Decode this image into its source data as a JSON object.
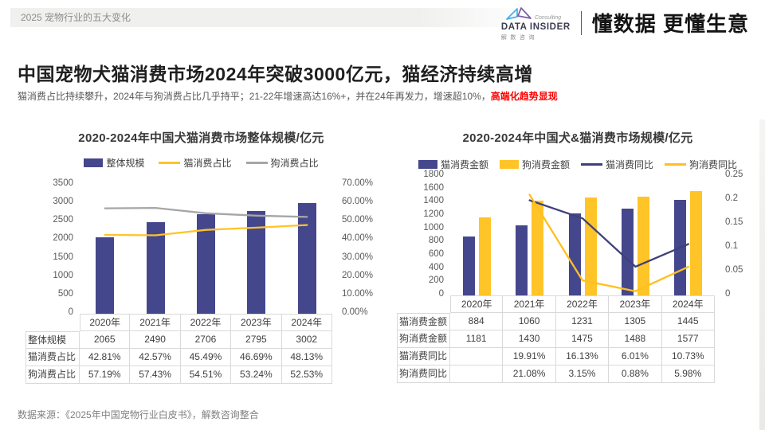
{
  "page": {
    "breadcrumb": "2025  宠物行业的五大变化",
    "title": "中国宠物犬猫消费市场2024年突破3000亿元，猫经济持续高增",
    "subtitle_main": "猫消费占比持续攀升，2024年与狗消费占比几乎持平；21-22年增速高达16%+，并在24年再发力，增速超10%，",
    "subtitle_highlight": "高端化趋势显现",
    "source": "数据来源：《2025年中国宠物行业白皮书》，解数咨询整合"
  },
  "brand": {
    "logo_script": "Consulting",
    "logo_name": "DATA INSIDER",
    "logo_sub": "解数咨询",
    "slogan": "懂数据 更懂生意"
  },
  "colors": {
    "bar_purple": "#44478C",
    "bar_yellow": "#FFC428",
    "line_gray": "#A6A6A6",
    "line_navy": "#3E4178",
    "line_yellow": "#FFBF1F",
    "highlight_red": "#FE0000",
    "table_border": "#D9D9D9"
  },
  "chart_data": [
    {
      "type": "bar",
      "subtype": "bar+line combo, dual axis",
      "title": "2020-2024年中国犬猫消费市场整体规模/亿元",
      "categories": [
        "2020年",
        "2021年",
        "2022年",
        "2023年",
        "2024年"
      ],
      "series": [
        {
          "name": "整体规模",
          "kind": "bar",
          "axis": "left",
          "color": "#44478C",
          "values": [
            2065,
            2490,
            2706,
            2795,
            3002
          ]
        },
        {
          "name": "猫消费占比",
          "kind": "line",
          "axis": "right",
          "color": "#FFC428",
          "values": [
            0.4281,
            0.4257,
            0.4549,
            0.4669,
            0.4813
          ]
        },
        {
          "name": "狗消费占比",
          "kind": "line",
          "axis": "right",
          "color": "#A6A6A6",
          "values": [
            0.5719,
            0.5743,
            0.5451,
            0.5324,
            0.5253
          ]
        }
      ],
      "left_axis": {
        "min": 0,
        "max": 3500,
        "step": 500,
        "format": "int"
      },
      "right_axis": {
        "min": 0,
        "max": 0.7,
        "step": 0.1,
        "format": "pct2"
      },
      "grid": "off",
      "legend_position": "top",
      "table_rows": [
        {
          "label": "整体规模",
          "cells": [
            "2065",
            "2490",
            "2706",
            "2795",
            "3002"
          ]
        },
        {
          "label": "猫消费占比",
          "cells": [
            "42.81%",
            "42.57%",
            "45.49%",
            "46.69%",
            "48.13%"
          ]
        },
        {
          "label": "狗消费占比",
          "cells": [
            "57.19%",
            "57.43%",
            "54.51%",
            "53.24%",
            "52.53%"
          ]
        }
      ]
    },
    {
      "type": "bar",
      "subtype": "grouped bar+line combo, dual axis",
      "title": "2020-2024年中国犬&猫消费市场规模/亿元",
      "categories": [
        "2020年",
        "2021年",
        "2022年",
        "2023年",
        "2024年"
      ],
      "series": [
        {
          "name": "猫消费金额",
          "kind": "bar",
          "axis": "left",
          "color": "#44478C",
          "values": [
            884,
            1060,
            1231,
            1305,
            1445
          ]
        },
        {
          "name": "狗消费金额",
          "kind": "bar",
          "axis": "left",
          "color": "#FFC428",
          "values": [
            1181,
            1430,
            1475,
            1488,
            1577
          ]
        },
        {
          "name": "猫消费同比",
          "kind": "line",
          "axis": "right",
          "color": "#3E4178",
          "values": [
            null,
            0.1991,
            0.1613,
            0.0601,
            0.1073
          ]
        },
        {
          "name": "狗消费同比",
          "kind": "line",
          "axis": "right",
          "color": "#FFBF1F",
          "values": [
            null,
            0.2108,
            0.0315,
            0.0088,
            0.0598
          ]
        }
      ],
      "left_axis": {
        "min": 0,
        "max": 1800,
        "step": 200,
        "format": "int"
      },
      "right_axis": {
        "min": 0,
        "max": 0.25,
        "step": 0.05,
        "format": "num"
      },
      "grid": "off",
      "legend_position": "top",
      "table_rows": [
        {
          "label": "猫消费金额",
          "cells": [
            "884",
            "1060",
            "1231",
            "1305",
            "1445"
          ]
        },
        {
          "label": "狗消费金额",
          "cells": [
            "1181",
            "1430",
            "1475",
            "1488",
            "1577"
          ]
        },
        {
          "label": "猫消费同比",
          "cells": [
            "",
            "19.91%",
            "16.13%",
            "6.01%",
            "10.73%"
          ]
        },
        {
          "label": "狗消费同比",
          "cells": [
            "",
            "21.08%",
            "3.15%",
            "0.88%",
            "5.98%"
          ]
        }
      ]
    }
  ]
}
